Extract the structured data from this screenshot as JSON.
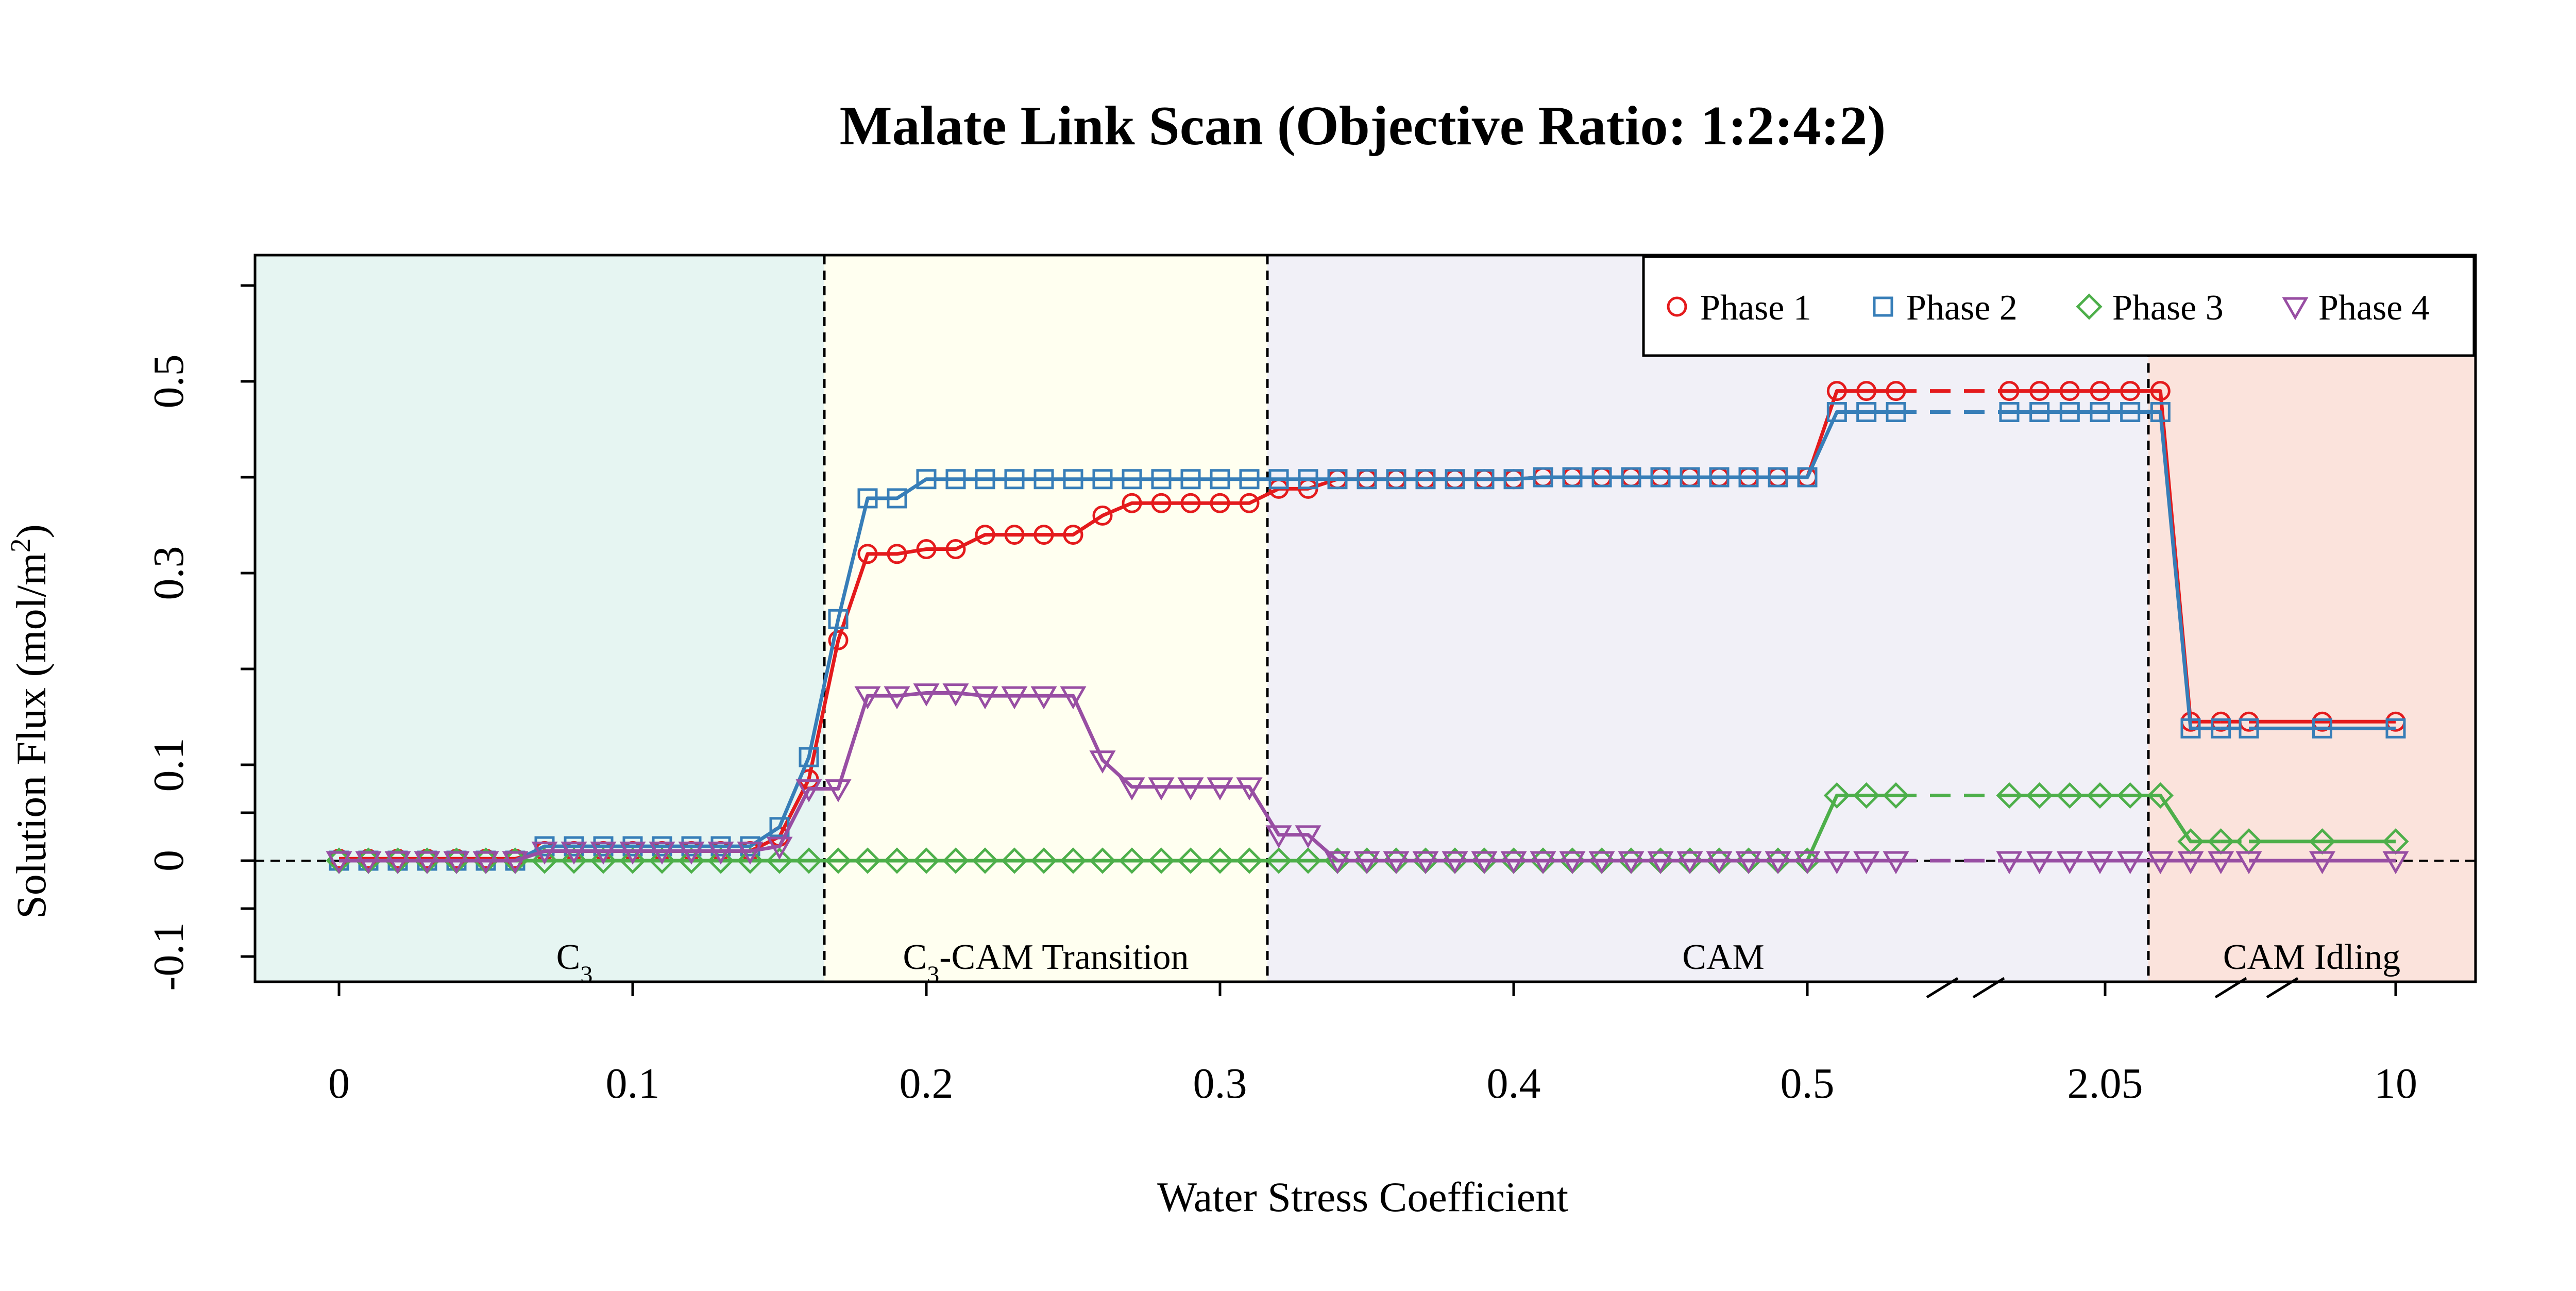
{
  "chart_data": {
    "type": "line",
    "title": "Malate Link Scan (Objective Ratio: 1:2:4:2)",
    "xlabel": "Water Stress Coefficient",
    "ylabel": "Solution Flux (mol/m²)",
    "ylabel_parts": {
      "main": "Solution Flux (mol/m",
      "sup": "2",
      "close": ")"
    },
    "ylim": [
      -0.1,
      0.6
    ],
    "x_axis": {
      "scale": "broken categorical scan axis (0–0.5, then 2.05, then 10)",
      "tick_labels": [
        "0",
        "0.1",
        "0.2",
        "0.3",
        "0.4",
        "0.5",
        "2.05",
        "10"
      ]
    },
    "y_axis": {
      "ticks": [
        -0.1,
        0,
        0.1,
        0.3,
        0.5
      ],
      "tick_labels": [
        "-0.1",
        "0",
        "0.1",
        "0.3",
        "0.5"
      ]
    },
    "reference_line_y": 0,
    "regions": [
      {
        "label": "C3",
        "label_main": "C",
        "label_sub": "3",
        "label_rest": "",
        "color": "#e6f5f2"
      },
      {
        "label": "C3-CAM Transition",
        "label_main": "C",
        "label_sub": "3",
        "label_rest": "-CAM Transition",
        "color": "#fffff0"
      },
      {
        "label": "CAM",
        "label_main": "CAM",
        "label_sub": "",
        "label_rest": "",
        "color": "#f1f0f7"
      },
      {
        "label": "CAM Idling",
        "label_main": "CAM Idling",
        "label_sub": "",
        "label_rest": "",
        "color": "#fbe3dc"
      }
    ],
    "legend": {
      "placement": "top-right"
    },
    "series": [
      {
        "name": "Phase 1",
        "color": "#e41a1c",
        "marker": "circle",
        "segments": [
          {
            "x": [
              0,
              0.01,
              0.02,
              0.03,
              0.04,
              0.05,
              0.06,
              0.07,
              0.08,
              0.09,
              0.1,
              0.11,
              0.12,
              0.13,
              0.14,
              0.15,
              0.16,
              0.17,
              0.18,
              0.19,
              0.2,
              0.21,
              0.22,
              0.23,
              0.24,
              0.25,
              0.26,
              0.27,
              0.28,
              0.29,
              0.3,
              0.31,
              0.32,
              0.33,
              0.34,
              0.35,
              0.36,
              0.37,
              0.38,
              0.39,
              0.4,
              0.41,
              0.42,
              0.43,
              0.44,
              0.45,
              0.46,
              0.47,
              0.48,
              0.49,
              0.5,
              0.51,
              0.52,
              0.53
            ],
            "y": [
              0.002,
              0.002,
              0.002,
              0.002,
              0.002,
              0.002,
              0.002,
              0.01,
              0.01,
              0.01,
              0.01,
              0.01,
              0.01,
              0.01,
              0.01,
              0.025,
              0.085,
              0.23,
              0.32,
              0.32,
              0.325,
              0.325,
              0.34,
              0.34,
              0.34,
              0.34,
              0.36,
              0.373,
              0.373,
              0.373,
              0.373,
              0.373,
              0.388,
              0.388,
              0.398,
              0.398,
              0.398,
              0.398,
              0.398,
              0.398,
              0.398,
              0.4,
              0.4,
              0.4,
              0.4,
              0.4,
              0.4,
              0.4,
              0.4,
              0.4,
              0.4,
              0.49,
              0.49,
              0.49
            ]
          },
          {
            "x": [
              2.0,
              2.01,
              2.02,
              2.03,
              2.04,
              2.05,
              2.06,
              2.07
            ],
            "y": [
              0.49,
              0.49,
              0.49,
              0.49,
              0.49,
              0.49,
              0.145,
              0.145
            ]
          },
          {
            "x": [
              8,
              9,
              10
            ],
            "y": [
              0.145,
              0.145,
              0.145
            ]
          }
        ]
      },
      {
        "name": "Phase 2",
        "color": "#377eb8",
        "marker": "square",
        "segments": [
          {
            "x": [
              0,
              0.01,
              0.02,
              0.03,
              0.04,
              0.05,
              0.06,
              0.07,
              0.08,
              0.09,
              0.1,
              0.11,
              0.12,
              0.13,
              0.14,
              0.15,
              0.16,
              0.17,
              0.18,
              0.19,
              0.2,
              0.21,
              0.22,
              0.23,
              0.24,
              0.25,
              0.26,
              0.27,
              0.28,
              0.29,
              0.3,
              0.31,
              0.32,
              0.33,
              0.34,
              0.35,
              0.36,
              0.37,
              0.38,
              0.39,
              0.4,
              0.41,
              0.42,
              0.43,
              0.44,
              0.45,
              0.46,
              0.47,
              0.48,
              0.49,
              0.5,
              0.51,
              0.52,
              0.53
            ],
            "y": [
              0,
              0,
              0,
              0,
              0,
              0,
              0,
              0.015,
              0.015,
              0.015,
              0.015,
              0.015,
              0.015,
              0.015,
              0.015,
              0.035,
              0.108,
              0.252,
              0.378,
              0.378,
              0.398,
              0.398,
              0.398,
              0.398,
              0.398,
              0.398,
              0.398,
              0.398,
              0.398,
              0.398,
              0.398,
              0.398,
              0.398,
              0.398,
              0.398,
              0.398,
              0.398,
              0.398,
              0.398,
              0.398,
              0.398,
              0.4,
              0.4,
              0.4,
              0.4,
              0.4,
              0.4,
              0.4,
              0.4,
              0.4,
              0.4,
              0.468,
              0.468,
              0.468
            ]
          },
          {
            "x": [
              2.0,
              2.01,
              2.02,
              2.03,
              2.04,
              2.05,
              2.06,
              2.07
            ],
            "y": [
              0.468,
              0.468,
              0.468,
              0.468,
              0.468,
              0.468,
              0.138,
              0.138
            ]
          },
          {
            "x": [
              8,
              9,
              10
            ],
            "y": [
              0.138,
              0.138,
              0.138
            ]
          }
        ]
      },
      {
        "name": "Phase 3",
        "color": "#4daf4a",
        "marker": "diamond",
        "segments": [
          {
            "x": [
              0,
              0.01,
              0.02,
              0.03,
              0.04,
              0.05,
              0.06,
              0.07,
              0.08,
              0.09,
              0.1,
              0.11,
              0.12,
              0.13,
              0.14,
              0.15,
              0.16,
              0.17,
              0.18,
              0.19,
              0.2,
              0.21,
              0.22,
              0.23,
              0.24,
              0.25,
              0.26,
              0.27,
              0.28,
              0.29,
              0.3,
              0.31,
              0.32,
              0.33,
              0.34,
              0.35,
              0.36,
              0.37,
              0.38,
              0.39,
              0.4,
              0.41,
              0.42,
              0.43,
              0.44,
              0.45,
              0.46,
              0.47,
              0.48,
              0.49,
              0.5,
              0.51,
              0.52,
              0.53
            ],
            "y": [
              0,
              0,
              0,
              0,
              0,
              0,
              0,
              0,
              0,
              0,
              0,
              0,
              0,
              0,
              0,
              0,
              0,
              0,
              0,
              0,
              0,
              0,
              0,
              0,
              0,
              0,
              0,
              0,
              0,
              0,
              0,
              0,
              0,
              0,
              0,
              0,
              0,
              0,
              0,
              0,
              0,
              0,
              0,
              0,
              0,
              0,
              0,
              0,
              0,
              0,
              0,
              0.068,
              0.068,
              0.068
            ]
          },
          {
            "x": [
              2.0,
              2.01,
              2.02,
              2.03,
              2.04,
              2.05,
              2.06,
              2.07
            ],
            "y": [
              0.068,
              0.068,
              0.068,
              0.068,
              0.068,
              0.068,
              0.02,
              0.02
            ]
          },
          {
            "x": [
              8,
              9,
              10
            ],
            "y": [
              0.02,
              0.02,
              0.02
            ]
          }
        ]
      },
      {
        "name": "Phase 4",
        "color": "#984ea3",
        "marker": "triangle-down",
        "segments": [
          {
            "x": [
              0,
              0.01,
              0.02,
              0.03,
              0.04,
              0.05,
              0.06,
              0.07,
              0.08,
              0.09,
              0.1,
              0.11,
              0.12,
              0.13,
              0.14,
              0.15,
              0.16,
              0.17,
              0.18,
              0.19,
              0.2,
              0.21,
              0.22,
              0.23,
              0.24,
              0.25,
              0.26,
              0.27,
              0.28,
              0.29,
              0.3,
              0.31,
              0.32,
              0.33,
              0.34,
              0.35,
              0.36,
              0.37,
              0.38,
              0.39,
              0.4,
              0.41,
              0.42,
              0.43,
              0.44,
              0.45,
              0.46,
              0.47,
              0.48,
              0.49,
              0.5,
              0.51,
              0.52,
              0.53
            ],
            "y": [
              0,
              0,
              0,
              0,
              0,
              0,
              0,
              0.01,
              0.01,
              0.01,
              0.01,
              0.01,
              0.01,
              0.01,
              0.01,
              0.015,
              0.075,
              0.075,
              0.172,
              0.172,
              0.175,
              0.175,
              0.172,
              0.172,
              0.172,
              0.172,
              0.105,
              0.077,
              0.077,
              0.077,
              0.077,
              0.077,
              0.027,
              0.027,
              0,
              0,
              0,
              0,
              0,
              0,
              0,
              0,
              0,
              0,
              0,
              0,
              0,
              0,
              0,
              0,
              0,
              0,
              0,
              0
            ]
          },
          {
            "x": [
              2.0,
              2.01,
              2.02,
              2.03,
              2.04,
              2.05,
              2.06,
              2.07
            ],
            "y": [
              0,
              0,
              0,
              0,
              0,
              0,
              0,
              0
            ]
          },
          {
            "x": [
              8,
              9,
              10
            ],
            "y": [
              0,
              0,
              0
            ]
          }
        ]
      }
    ]
  }
}
